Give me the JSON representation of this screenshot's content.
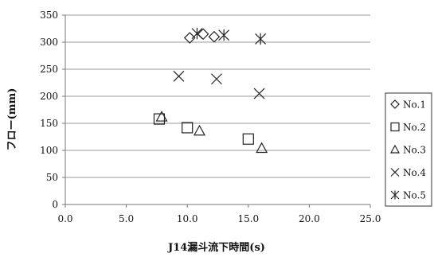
{
  "chart_data": {
    "type": "scatter",
    "xlabel": "J14漏斗流下時間(s)",
    "ylabel": "フロー(mm)",
    "xlim": [
      0,
      25
    ],
    "ylim": [
      0,
      350
    ],
    "x_ticks": [
      0,
      5,
      10,
      15,
      20,
      25
    ],
    "y_ticks": [
      0,
      50,
      100,
      150,
      200,
      250,
      300,
      350
    ],
    "x_tick_labels": [
      "0.0",
      "5.0",
      "10.0",
      "15.0",
      "20.0",
      "25.0"
    ],
    "y_tick_labels": [
      "0",
      "50",
      "100",
      "150",
      "200",
      "250",
      "300",
      "350"
    ],
    "grid": "horizontal",
    "legend_position": "right",
    "series": [
      {
        "name": "No.1",
        "marker": "diamond",
        "points": [
          [
            10.2,
            308
          ],
          [
            11.3,
            315
          ],
          [
            12.2,
            310
          ]
        ]
      },
      {
        "name": "No.2",
        "marker": "square",
        "points": [
          [
            7.7,
            158
          ],
          [
            10.0,
            142
          ],
          [
            15.0,
            121
          ]
        ]
      },
      {
        "name": "No.3",
        "marker": "triangle",
        "points": [
          [
            7.9,
            162
          ],
          [
            11.0,
            136
          ],
          [
            16.1,
            104
          ]
        ]
      },
      {
        "name": "No.4",
        "marker": "x",
        "points": [
          [
            9.3,
            237
          ],
          [
            12.4,
            232
          ],
          [
            15.9,
            205
          ]
        ]
      },
      {
        "name": "No.5",
        "marker": "asterisk",
        "points": [
          [
            10.8,
            316
          ],
          [
            13.0,
            313
          ],
          [
            16.0,
            306
          ]
        ]
      }
    ]
  }
}
